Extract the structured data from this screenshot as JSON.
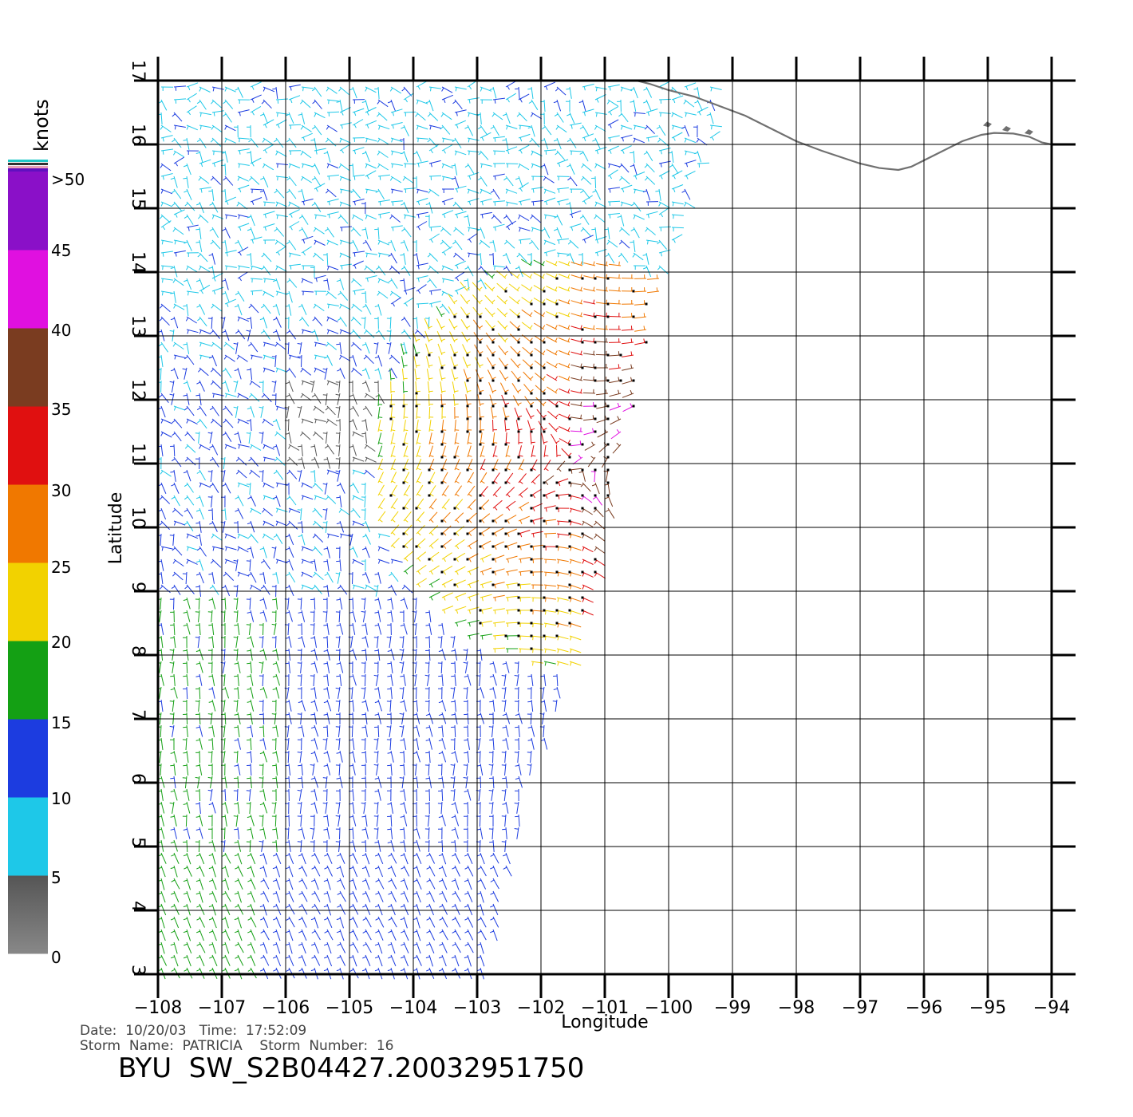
{
  "legend": {
    "title": "knots",
    "labels": [
      ">50",
      "45",
      "40",
      "35",
      "30",
      "25",
      "20",
      "15",
      "10",
      "5",
      "0"
    ]
  },
  "axes": {
    "x_title": "Longitude",
    "y_title": "Latitude",
    "lon_ticks": [
      -108,
      -107,
      -106,
      -105,
      -104,
      -103,
      -102,
      -101,
      -100,
      -99,
      -98,
      -97,
      -96,
      -95,
      -94
    ],
    "lon_tick_labels": [
      "−108",
      "−107",
      "−106",
      "−105",
      "−104",
      "−103",
      "−102",
      "−101",
      "−100",
      "−99",
      "−98",
      "−97",
      "−96",
      "−95",
      "−94"
    ],
    "lat_ticks": [
      3,
      4,
      5,
      6,
      7,
      8,
      9,
      10,
      11,
      12,
      13,
      14,
      15,
      16,
      17
    ],
    "lat_tick_labels": [
      "3",
      "4",
      "5",
      "6",
      "7",
      "8",
      "9",
      "10",
      "11",
      "12",
      "13",
      "14",
      "15",
      "16",
      "17"
    ],
    "lon_range": [
      -108,
      -94
    ],
    "lat_range": [
      3,
      17
    ]
  },
  "info": {
    "date_line": "Date:  10/20/03   Time:  17:52:09",
    "storm_line": "Storm  Name:  PATRICIA    Storm  Number:  16",
    "product_id": "BYU  SW_S2B04427.20032951750"
  },
  "colors": {
    "speed_bands": [
      {
        "min": 0,
        "max": 5,
        "color": "#555555"
      },
      {
        "min": 5,
        "max": 10,
        "color": "#1ec8e8"
      },
      {
        "min": 10,
        "max": 15,
        "color": "#1c3ce0"
      },
      {
        "min": 15,
        "max": 20,
        "color": "#14a014"
      },
      {
        "min": 20,
        "max": 25,
        "color": "#f2d200"
      },
      {
        "min": 25,
        "max": 30,
        "color": "#f07800"
      },
      {
        "min": 30,
        "max": 35,
        "color": "#e01010"
      },
      {
        "min": 35,
        "max": 40,
        "color": "#7a3c20"
      },
      {
        "min": 40,
        "max": 45,
        "color": "#e010e0"
      },
      {
        "min": 45,
        "max": 50,
        "color": "#8a10c8"
      },
      {
        "min": 50,
        "max": 60,
        "color": "#6010c0"
      }
    ],
    "coastline": "#707070",
    "grid": "#000000"
  },
  "coastline": [
    [
      -100.5,
      17.0
    ],
    [
      -100.3,
      16.95
    ],
    [
      -100.0,
      16.85
    ],
    [
      -99.6,
      16.75
    ],
    [
      -99.2,
      16.6
    ],
    [
      -98.8,
      16.45
    ],
    [
      -98.4,
      16.25
    ],
    [
      -98.0,
      16.05
    ],
    [
      -97.6,
      15.9
    ],
    [
      -97.3,
      15.8
    ],
    [
      -97.0,
      15.7
    ],
    [
      -96.7,
      15.63
    ],
    [
      -96.4,
      15.6
    ],
    [
      -96.2,
      15.65
    ],
    [
      -96.0,
      15.75
    ],
    [
      -95.7,
      15.9
    ],
    [
      -95.4,
      16.05
    ],
    [
      -95.1,
      16.15
    ],
    [
      -94.9,
      16.18
    ],
    [
      -94.6,
      16.17
    ],
    [
      -94.35,
      16.12
    ],
    [
      -94.15,
      16.03
    ],
    [
      -94.0,
      16.0
    ]
  ],
  "swath": {
    "west_lon": -108,
    "north_lat": 17,
    "south_lat": 3,
    "east_edge": [
      [
        -99.2,
        16.4
      ],
      [
        -99.6,
        15.4
      ],
      [
        -99.9,
        14.5
      ],
      [
        -100.1,
        13.9
      ],
      [
        -100.3,
        13.0
      ],
      [
        -100.5,
        12.0
      ],
      [
        -100.8,
        11.0
      ],
      [
        -101.0,
        10.0
      ],
      [
        -101.2,
        9.0
      ],
      [
        -101.5,
        8.0
      ],
      [
        -101.8,
        7.0
      ],
      [
        -102.2,
        6.0
      ],
      [
        -102.4,
        5.0
      ],
      [
        -102.7,
        4.0
      ],
      [
        -102.8,
        3.0
      ]
    ]
  },
  "wind_field": {
    "storm_center": [
      -101.5,
      11.0
    ],
    "grid_spacing_deg": 0.2
  }
}
